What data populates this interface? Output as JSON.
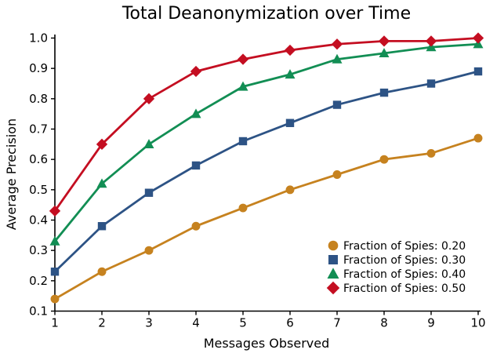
{
  "title": "Total Deanonymization over Time",
  "chart_data": {
    "type": "line",
    "title": "Total Deanonymization over Time",
    "xlabel": "Messages Observed",
    "ylabel": "Average Precision",
    "xlim": [
      1,
      10
    ],
    "ylim": [
      0.1,
      1.0
    ],
    "grid": false,
    "legend_position": "lower-right-inside",
    "legend_frame": false,
    "axis_color": "#000000",
    "background_color": "#ffffff",
    "xticks": [
      1,
      2,
      3,
      4,
      5,
      6,
      7,
      8,
      9,
      10
    ],
    "xtick_labels": [
      "1",
      "2",
      "3",
      "4",
      "5",
      "6",
      "7",
      "8",
      "9",
      "10"
    ],
    "yticks": [
      0.1,
      0.2,
      0.3,
      0.4,
      0.5,
      0.6,
      0.7,
      0.8,
      0.9,
      1.0
    ],
    "ytick_labels": [
      "0.1",
      "0.2",
      "0.3",
      "0.4",
      "0.5",
      "0.6",
      "0.7",
      "0.8",
      "0.9",
      "1.0"
    ],
    "x": [
      1,
      2,
      3,
      4,
      5,
      6,
      7,
      8,
      9,
      10
    ],
    "series": [
      {
        "name": "Fraction of Spies: 0.20",
        "marker": "circle",
        "color": "#C6821F",
        "values": [
          0.14,
          0.23,
          0.3,
          0.38,
          0.44,
          0.5,
          0.55,
          0.6,
          0.62,
          0.67
        ]
      },
      {
        "name": "Fraction of Spies: 0.30",
        "marker": "square",
        "color": "#2D5385",
        "values": [
          0.23,
          0.38,
          0.49,
          0.58,
          0.66,
          0.72,
          0.78,
          0.82,
          0.85,
          0.89
        ]
      },
      {
        "name": "Fraction of Spies: 0.40",
        "marker": "triangle-up",
        "color": "#128E54",
        "values": [
          0.33,
          0.52,
          0.65,
          0.75,
          0.84,
          0.88,
          0.93,
          0.95,
          0.97,
          0.98
        ]
      },
      {
        "name": "Fraction of Spies: 0.50",
        "marker": "diamond",
        "color": "#C40E21",
        "values": [
          0.43,
          0.65,
          0.8,
          0.89,
          0.93,
          0.96,
          0.98,
          0.99,
          0.99,
          1.0
        ]
      }
    ]
  }
}
